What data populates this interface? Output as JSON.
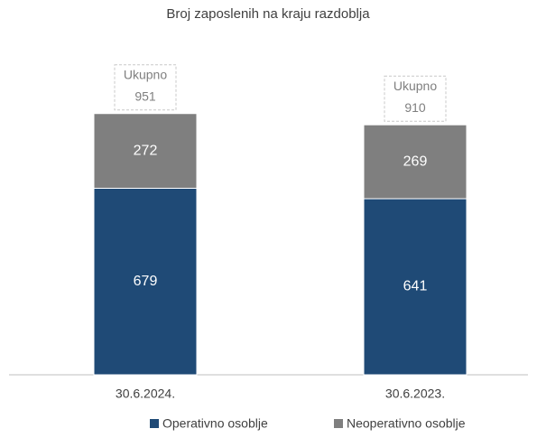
{
  "chart_data": {
    "type": "stacked_bar",
    "title": "Broj zaposlenih na kraju razdoblja",
    "categories": [
      "30.6.2024.",
      "30.6.2023."
    ],
    "series": [
      {
        "name": "Operativno osoblje",
        "color": "#1f4a76",
        "values": [
          679,
          641
        ]
      },
      {
        "name": "Neoperativno osoblje",
        "color": "#7f7f7f",
        "values": [
          272,
          269
        ]
      }
    ],
    "totals": {
      "label": "Ukupno",
      "values": [
        951,
        910
      ]
    },
    "ylim": [
      0,
      1200
    ],
    "legend": "bottom"
  }
}
